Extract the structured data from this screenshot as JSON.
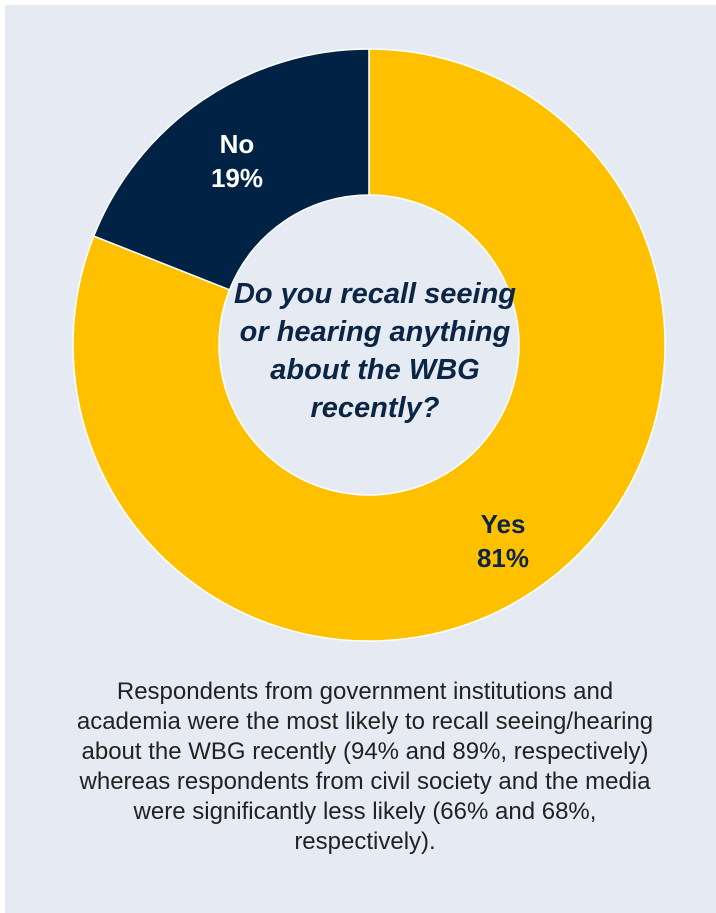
{
  "chart_data": {
    "type": "pie",
    "categories": [
      "Yes",
      "No"
    ],
    "values": [
      81,
      19
    ],
    "value_labels": [
      "81%",
      "19%"
    ],
    "colors": [
      "#ffc000",
      "#002244"
    ],
    "label_colors": [
      "#0b2545",
      "#ffffff"
    ],
    "center_text": "Do you recall seeing or hearing anything about the WBG recently?"
  },
  "caption": "Respondents from government institutions and academia were the most likely to recall seeing/hearing about the WBG recently (94% and 89%, respectively) whereas respondents from civil society and the media were significantly less likely (66% and 68%, respectively).",
  "colors": {
    "panel_background": "#e5eaf3",
    "page_background": "#ffffff"
  }
}
